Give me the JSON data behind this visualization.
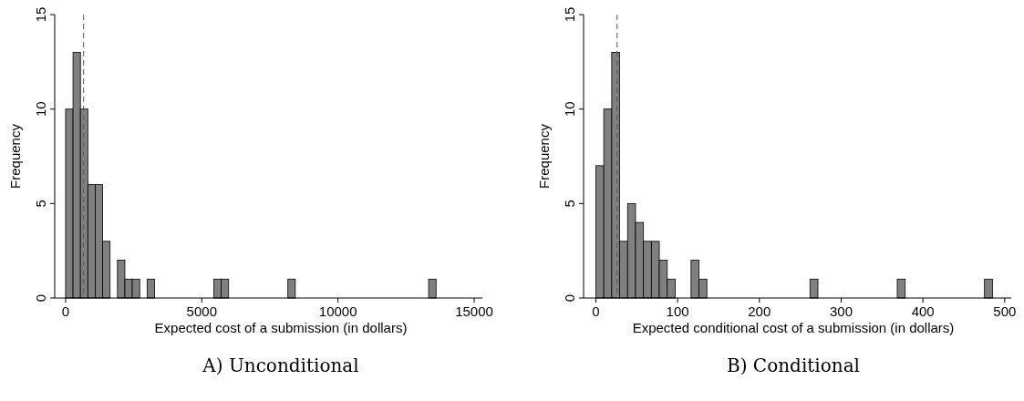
{
  "chart_data": [
    {
      "type": "histogram",
      "title": "A) Unconditional",
      "xlabel": "Expected cost of a submission (in dollars)",
      "ylabel": "Frequency",
      "bins": [
        0,
        272,
        544,
        816,
        1088,
        1360,
        1632,
        1904,
        2176,
        2448,
        2720,
        2992,
        3264,
        3536,
        3808,
        4080,
        4352,
        4624,
        4896,
        5168,
        5440,
        5712,
        5984,
        6256,
        6528,
        6800,
        7072,
        7344,
        7616,
        7888,
        8160,
        8432,
        8704,
        8976,
        9248,
        9520,
        9792,
        10064,
        10336,
        10608,
        10880,
        11152,
        11424,
        11696,
        11968,
        12240,
        12512,
        12784,
        13056,
        13328,
        13600
      ],
      "values": [
        10,
        13,
        10,
        6,
        6,
        3,
        0,
        2,
        1,
        1,
        0,
        1,
        0,
        0,
        0,
        0,
        0,
        0,
        0,
        0,
        1,
        1,
        0,
        0,
        0,
        0,
        0,
        0,
        0,
        0,
        1,
        0,
        0,
        0,
        0,
        0,
        0,
        0,
        0,
        0,
        0,
        0,
        0,
        0,
        0,
        0,
        0,
        0,
        0,
        1
      ],
      "color": "#808080",
      "xlim": [
        -400,
        15300
      ],
      "xticks": [
        0,
        5000,
        10000,
        15000
      ],
      "ylim": [
        0,
        15
      ],
      "yticks": [
        0,
        5,
        10,
        15
      ],
      "ref_lines": [
        {
          "axis": "x",
          "value": 660,
          "color": "#555555",
          "line_style": "dashed"
        }
      ]
    },
    {
      "type": "histogram",
      "title": "B) Conditional",
      "xlabel": "Expected conditional cost of a submission (in dollars)",
      "ylabel": "Frequency",
      "bins": [
        0,
        9.7,
        19.4,
        29.1,
        38.8,
        48.5,
        58.2,
        67.9,
        77.6,
        87.3,
        97,
        106.7,
        116.4,
        126.1,
        135.8,
        145.5,
        155.2,
        164.9,
        174.6,
        184.3,
        194,
        203.7,
        213.4,
        223.1,
        232.8,
        242.5,
        252.2,
        261.9,
        271.6,
        281.3,
        291,
        300.7,
        310.4,
        320.1,
        329.8,
        339.5,
        349.2,
        358.9,
        368.6,
        378.3,
        388,
        397.7,
        407.4,
        417.1,
        426.8,
        436.5,
        446.2,
        455.9,
        465.6,
        475.3,
        485
      ],
      "values": [
        7,
        10,
        13,
        3,
        5,
        4,
        3,
        3,
        2,
        1,
        0,
        0,
        2,
        1,
        0,
        0,
        0,
        0,
        0,
        0,
        0,
        0,
        0,
        0,
        0,
        0,
        0,
        1,
        0,
        0,
        0,
        0,
        0,
        0,
        0,
        0,
        0,
        0,
        1,
        0,
        0,
        0,
        0,
        0,
        0,
        0,
        0,
        0,
        0,
        1
      ],
      "color": "#808080",
      "xlim": [
        -15,
        508
      ],
      "xticks": [
        0,
        100,
        200,
        300,
        400,
        500
      ],
      "ylim": [
        0,
        15
      ],
      "yticks": [
        0,
        5,
        10,
        15
      ],
      "ref_lines": [
        {
          "axis": "x",
          "value": 26,
          "color": "#555555",
          "line_style": "dashed"
        }
      ]
    }
  ]
}
